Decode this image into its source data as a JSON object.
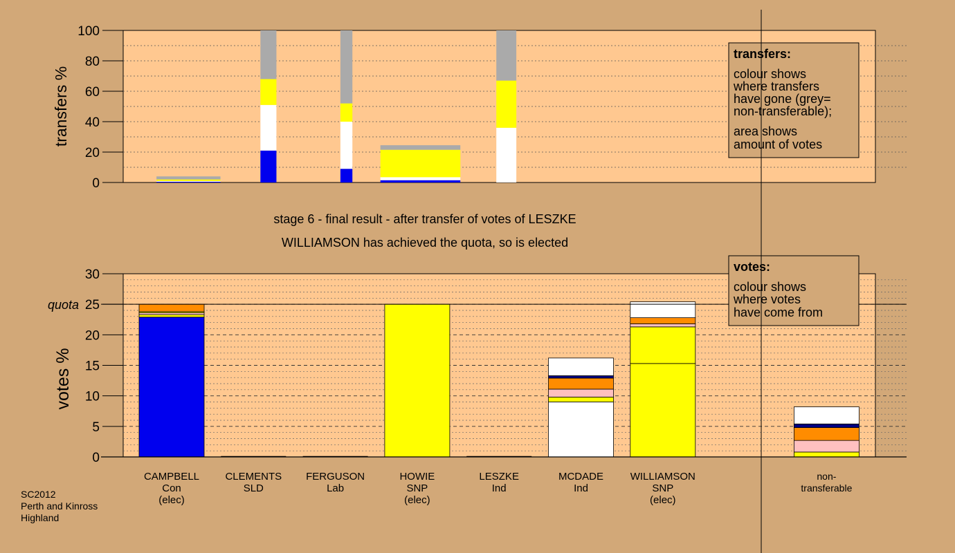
{
  "chart_data": [
    {
      "type": "bar",
      "ylabel": "transfers %",
      "ylim": [
        0,
        100
      ],
      "yticks": [
        "0",
        "20",
        "40",
        "60",
        "80",
        "100"
      ],
      "grid": true,
      "bars": [
        {
          "x_start": 0.2,
          "x_end": 1.0,
          "segments": [
            {
              "color": "#0000ee",
              "value": 0.5
            },
            {
              "color": "#ffffff",
              "value": 0.5
            },
            {
              "color": "#ffff00",
              "value": 1
            },
            {
              "color": "#aaaaaa",
              "value": 2
            }
          ]
        },
        {
          "x_start": 1.5,
          "x_end": 1.7,
          "segments": [
            {
              "color": "#0000ee",
              "value": 21
            },
            {
              "color": "#ffffff",
              "value": 30
            },
            {
              "color": "#ffff00",
              "value": 17
            },
            {
              "color": "#aaaaaa",
              "value": 32
            }
          ]
        },
        {
          "x_start": 2.5,
          "x_end": 2.65,
          "segments": [
            {
              "color": "#0000ee",
              "value": 9
            },
            {
              "color": "#ffffff",
              "value": 31
            },
            {
              "color": "#ffff00",
              "value": 12
            },
            {
              "color": "#aaaaaa",
              "value": 48
            }
          ]
        },
        {
          "x_start": 3.0,
          "x_end": 4.0,
          "segments": [
            {
              "color": "#0000ee",
              "value": 1.5
            },
            {
              "color": "#ffffff",
              "value": 2
            },
            {
              "color": "#ffff00",
              "value": 18
            },
            {
              "color": "#aaaaaa",
              "value": 3
            }
          ]
        },
        {
          "x_start": 4.45,
          "x_end": 4.7,
          "segments": [
            {
              "color": "#ffffff",
              "value": 36
            },
            {
              "color": "#ffff00",
              "value": 31
            },
            {
              "color": "#aaaaaa",
              "value": 33
            }
          ]
        }
      ],
      "legend": {
        "title": "transfers:",
        "lines": [
          "colour shows",
          "where transfers",
          "have gone (grey=",
          "non-transferable);"
        ],
        "lines2": [
          "area shows",
          "amount of votes"
        ]
      }
    },
    {
      "type": "bar",
      "ylabel": "votes %",
      "ylim": [
        0,
        30
      ],
      "yticks": [
        "0",
        "5",
        "10",
        "15",
        "20",
        "25",
        "30"
      ],
      "quota": {
        "label": "quota",
        "value": 25
      },
      "grid": true,
      "categories": [
        [
          "CAMPBELL",
          "Con",
          "(elec)"
        ],
        [
          "CLEMENTS",
          "SLD"
        ],
        [
          "FERGUSON",
          "Lab"
        ],
        [
          "HOWIE",
          "SNP",
          "(elec)"
        ],
        [
          "LESZKE",
          "Ind"
        ],
        [
          "MCDADE",
          "Ind"
        ],
        [
          "WILLIAMSON",
          "SNP",
          "(elec)"
        ],
        [],
        [
          "non-",
          "transferable"
        ]
      ],
      "stacks": [
        [
          {
            "color": "#0000ee",
            "value": 22.9
          },
          {
            "color": "#ffff00",
            "value": 0.4
          },
          {
            "color": "#ffc0c0",
            "value": 0.3
          },
          {
            "color": "#ffff00",
            "value": 0.2
          },
          {
            "color": "#ff8c00",
            "value": 1.2
          }
        ],
        [],
        [],
        [
          {
            "color": "#ffff00",
            "value": 25.0
          }
        ],
        [],
        [
          {
            "color": "#ffffff",
            "value": 9.0
          },
          {
            "color": "#ffff00",
            "value": 0.8
          },
          {
            "color": "#ffc0c0",
            "value": 1.3
          },
          {
            "color": "#ff8c00",
            "value": 1.8
          },
          {
            "color": "#000080",
            "value": 0.4
          },
          {
            "color": "#ffffff",
            "value": 2.9
          }
        ],
        [
          {
            "color": "#ffff00",
            "value": 15.3
          },
          {
            "color": "#ffff00",
            "value": 6.0
          },
          {
            "color": "#ffc0c0",
            "value": 0.5
          },
          {
            "color": "#ff8c00",
            "value": 1.0
          },
          {
            "color": "#ffffff",
            "value": 2.6
          }
        ],
        [],
        [
          {
            "color": "#ffff00",
            "value": 0.8
          },
          {
            "color": "#ffc0c0",
            "value": 1.9
          },
          {
            "color": "#ff8c00",
            "value": 2.1
          },
          {
            "color": "#000080",
            "value": 0.6
          },
          {
            "color": "#ffffff",
            "value": 2.8
          }
        ]
      ],
      "legend": {
        "title": "votes:",
        "lines": [
          "colour shows",
          "where votes",
          "have come from"
        ]
      }
    }
  ],
  "caption": {
    "line1": "stage 6 - final result - after transfer of votes of LESZKE",
    "line2": "WILLIAMSON has achieved the quota, so is elected"
  },
  "footer": [
    "SC2012",
    "Perth and Kinross",
    "Highland"
  ]
}
